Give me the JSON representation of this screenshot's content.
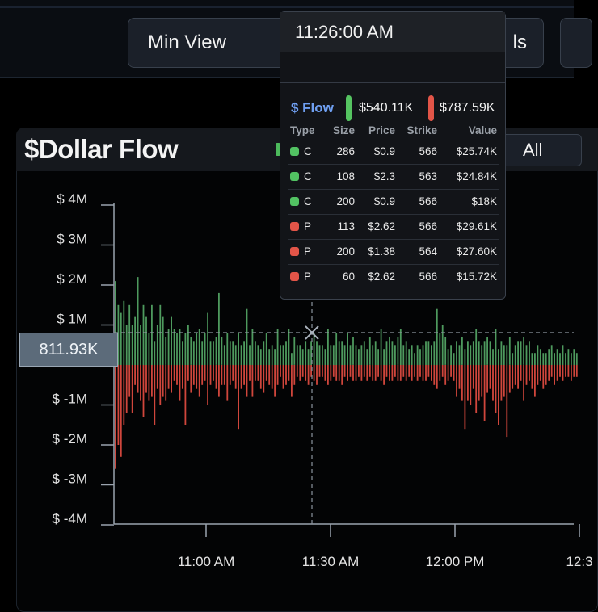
{
  "toolbar": {
    "min_view_label": "Min View",
    "details_label": "ls"
  },
  "panel": {
    "title": "$Dollar Flow",
    "range_label": "All"
  },
  "crosshair": {
    "y_value_label": "811.93K"
  },
  "tooltip": {
    "time": "11:26:00 AM",
    "flow_label": "$ Flow",
    "call_total": "$540.11K",
    "put_total": "$787.59K",
    "columns": [
      "Type",
      "Size",
      "Price",
      "Strike",
      "Value"
    ],
    "rows": [
      {
        "type": "C",
        "size": "286",
        "price": "$0.9",
        "strike": "566",
        "value": "$25.74K"
      },
      {
        "type": "C",
        "size": "108",
        "price": "$2.3",
        "strike": "563",
        "value": "$24.84K"
      },
      {
        "type": "C",
        "size": "200",
        "price": "$0.9",
        "strike": "566",
        "value": "$18K"
      },
      {
        "type": "P",
        "size": "113",
        "price": "$2.62",
        "strike": "566",
        "value": "$29.61K"
      },
      {
        "type": "P",
        "size": "200",
        "price": "$1.38",
        "strike": "564",
        "value": "$27.60K"
      },
      {
        "type": "P",
        "size": "60",
        "price": "$2.62",
        "strike": "566",
        "value": "$15.72K"
      }
    ]
  },
  "chart_data": {
    "type": "bar",
    "title": "$Dollar Flow",
    "y_ticks": [
      "$ 4M",
      "$ 3M",
      "$ 2M",
      "$ 1M",
      "$ -1M",
      "$ -2M",
      "$ -3M",
      "$ -4M"
    ],
    "x_ticks": [
      "11:00 AM",
      "11:30 AM",
      "12:00 PM",
      "12:3"
    ],
    "ylim": [
      -4000000,
      4000000
    ],
    "colors": {
      "call": "#4e9a5e",
      "put": "#d0463c"
    },
    "series": [
      {
        "type": "call",
        "values": [
          2.1,
          1.5,
          1.3,
          1.6,
          1.0,
          1.5,
          1.0,
          1.2,
          2.2,
          1.0,
          1.5,
          1.2,
          0.8,
          1.5,
          0.6,
          1.0,
          1.5,
          1.2,
          0.7,
          0.9,
          1.2,
          0.9,
          0.8,
          0.9,
          0.6,
          0.8,
          1.0,
          0.7,
          0.6,
          0.8,
          0.9,
          0.6,
          0.8,
          1.3,
          0.6,
          0.6,
          0.7,
          1.8,
          0.7,
          0.5,
          0.8,
          0.6,
          0.6,
          0.5,
          0.8,
          0.5,
          0.6,
          1.4,
          0.5,
          0.9,
          0.6,
          0.5,
          0.4,
          0.6,
          0.8,
          0.4,
          0.5,
          0.4,
          0.9,
          0.5,
          0.5,
          0.6,
          0.9,
          0.3,
          0.7,
          0.5,
          0.5,
          0.4,
          0.6,
          0.4,
          0.6,
          0.8,
          0.6,
          0.5,
          0.5,
          0.4,
          0.9,
          0.5,
          0.5,
          0.8,
          0.6,
          0.6,
          0.5,
          0.8,
          0.5,
          0.7,
          0.5,
          0.4,
          0.5,
          0.6,
          0.4,
          0.7,
          0.5,
          0.6,
          0.4,
          0.9,
          0.4,
          0.6,
          0.7,
          0.6,
          0.5,
          0.7,
          0.9,
          0.5,
          0.6,
          0.4,
          0.5,
          0.3,
          0.5,
          0.4,
          0.5,
          0.6,
          0.6,
          0.5,
          0.6,
          1.4,
          0.8,
          1.0,
          0.7,
          0.4,
          0.5,
          0.3,
          0.6,
          0.5,
          0.7,
          0.4,
          0.6,
          0.5,
          0.6,
          0.9,
          0.6,
          0.5,
          0.6,
          0.7,
          0.6,
          0.4,
          0.9,
          0.4,
          0.6,
          0.5,
          0.5,
          0.7,
          0.3,
          0.5,
          0.6,
          0.6,
          0.7,
          0.5,
          0.6,
          0.3,
          0.3,
          0.5,
          0.4,
          0.3,
          0.3,
          0.4,
          0.5,
          0.3,
          0.4,
          0.3,
          0.5,
          0.3,
          0.4,
          0.3,
          0.4,
          0.3
        ]
      },
      {
        "type": "put",
        "values": [
          2.6,
          2.0,
          2.3,
          1.5,
          1.2,
          0.8,
          1.2,
          0.5,
          0.7,
          0.9,
          1.3,
          0.7,
          0.9,
          0.8,
          1.5,
          0.6,
          1.0,
          0.8,
          0.9,
          0.6,
          0.7,
          0.4,
          0.5,
          0.9,
          0.6,
          1.5,
          0.4,
          0.7,
          0.5,
          0.6,
          0.8,
          0.5,
          0.4,
          1.0,
          0.5,
          0.4,
          0.6,
          0.8,
          0.5,
          0.5,
          0.9,
          0.5,
          0.4,
          0.6,
          1.6,
          0.6,
          0.5,
          0.8,
          0.4,
          0.8,
          0.4,
          0.4,
          0.6,
          0.7,
          0.4,
          0.5,
          0.6,
          0.8,
          0.5,
          0.3,
          0.6,
          0.5,
          0.4,
          0.8,
          0.5,
          0.3,
          0.4,
          0.3,
          0.4,
          0.5,
          0.3,
          0.4,
          0.5,
          0.3,
          0.3,
          0.4,
          0.5,
          0.4,
          0.3,
          0.4,
          0.4,
          0.5,
          0.3,
          0.4,
          0.3,
          0.4,
          0.4,
          0.3,
          0.4,
          0.3,
          0.4,
          0.3,
          0.4,
          0.4,
          0.3,
          0.4,
          0.5,
          0.3,
          0.4,
          0.4,
          0.3,
          0.4,
          0.4,
          0.3,
          0.4,
          0.3,
          0.4,
          0.3,
          0.4,
          0.3,
          0.4,
          0.4,
          0.3,
          0.4,
          0.5,
          0.6,
          0.4,
          0.3,
          0.5,
          0.4,
          0.3,
          0.4,
          0.8,
          0.6,
          0.9,
          1.6,
          0.9,
          1.0,
          0.6,
          1.2,
          0.9,
          0.8,
          1.4,
          0.7,
          0.6,
          0.9,
          1.2,
          1.5,
          0.9,
          0.8,
          1.8,
          0.7,
          0.6,
          0.5,
          0.6,
          0.4,
          0.9,
          0.5,
          0.4,
          0.6,
          0.8,
          0.5,
          0.4,
          0.6,
          0.5,
          0.4,
          0.3,
          0.5,
          0.4,
          0.3,
          0.4,
          0.3,
          0.3,
          0.4,
          0.3,
          0.3
        ]
      }
    ]
  }
}
